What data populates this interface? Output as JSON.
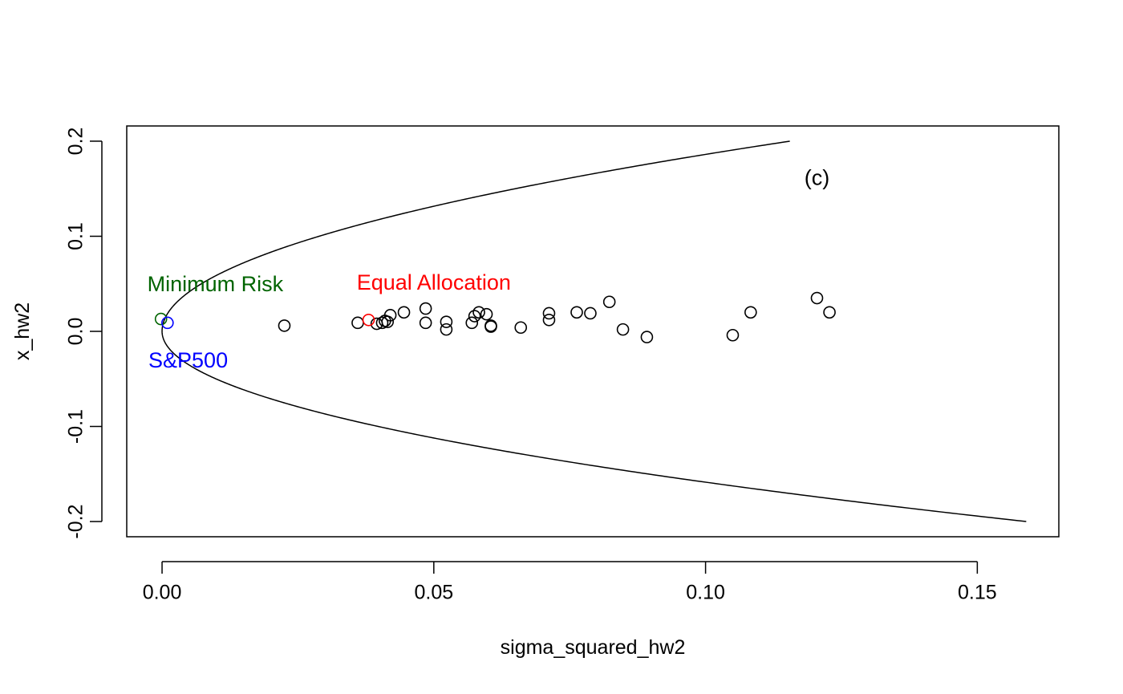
{
  "chart_data": {
    "type": "scatter",
    "title": "",
    "xlabel": "sigma_squared_hw2",
    "ylabel": "x_hw2",
    "xlim": [
      -0.0065,
      0.165
    ],
    "ylim": [
      -0.216,
      0.216
    ],
    "x_ticks": [
      0.0,
      0.05,
      0.1,
      0.15
    ],
    "x_tick_labels": [
      "0.00",
      "0.05",
      "0.10",
      "0.15"
    ],
    "y_ticks": [
      -0.2,
      -0.1,
      0.0,
      0.1,
      0.2
    ],
    "y_tick_labels": [
      "-0.2",
      "-0.1",
      "0.0",
      "0.1",
      "0.2"
    ],
    "grid": false,
    "legend": "none",
    "frontier": {
      "description_shape": "parabola",
      "vertex": [
        0.0,
        0.0
      ],
      "upper_end": [
        0.1155,
        0.2
      ],
      "lower_end": [
        0.159,
        -0.2
      ]
    },
    "series": [
      {
        "color": "#000000",
        "marker": "open-circle",
        "points": [
          [
            0.0225,
            0.006
          ],
          [
            0.036,
            0.009
          ],
          [
            0.0395,
            0.008
          ],
          [
            0.0405,
            0.009
          ],
          [
            0.041,
            0.011
          ],
          [
            0.0415,
            0.01
          ],
          [
            0.042,
            0.017
          ],
          [
            0.0445,
            0.02
          ],
          [
            0.0485,
            0.009
          ],
          [
            0.0485,
            0.024
          ],
          [
            0.0523,
            0.002
          ],
          [
            0.0523,
            0.01
          ],
          [
            0.057,
            0.009
          ],
          [
            0.0575,
            0.016
          ],
          [
            0.0583,
            0.02
          ],
          [
            0.0597,
            0.018
          ],
          [
            0.0605,
            0.005
          ],
          [
            0.0605,
            0.006
          ],
          [
            0.066,
            0.004
          ],
          [
            0.0712,
            0.012
          ],
          [
            0.0712,
            0.019
          ],
          [
            0.0763,
            0.02
          ],
          [
            0.0788,
            0.019
          ],
          [
            0.0823,
            0.031
          ],
          [
            0.0848,
            0.002
          ],
          [
            0.0892,
            -0.006
          ],
          [
            0.105,
            -0.004
          ],
          [
            0.1083,
            0.02
          ],
          [
            0.1205,
            0.035
          ],
          [
            0.1228,
            0.02
          ]
        ]
      },
      {
        "name": "Minimum Risk",
        "color": "#006400",
        "marker": "open-circle",
        "points": [
          [
            -0.0002,
            0.013
          ]
        ]
      },
      {
        "name": "S&P500",
        "color": "#0000ff",
        "marker": "open-circle",
        "points": [
          [
            0.001,
            0.009
          ]
        ]
      },
      {
        "name": "Equal Allocation",
        "color": "#ff0000",
        "marker": "open-circle",
        "points": [
          [
            0.038,
            0.012
          ]
        ]
      }
    ],
    "annotations": [
      {
        "id": "panel",
        "text": "(c)",
        "x": 0.1205,
        "y": 0.16,
        "color": "#000000"
      },
      {
        "id": "minrisk",
        "text": "Minimum Risk",
        "x": 0.0098,
        "y": 0.048,
        "color": "#006400"
      },
      {
        "id": "sp500",
        "text": "S&P500",
        "x": 0.0048,
        "y": -0.032,
        "color": "#0000ff"
      },
      {
        "id": "equal",
        "text": "Equal Allocation",
        "x": 0.05,
        "y": 0.05,
        "color": "#ff0000"
      }
    ]
  }
}
